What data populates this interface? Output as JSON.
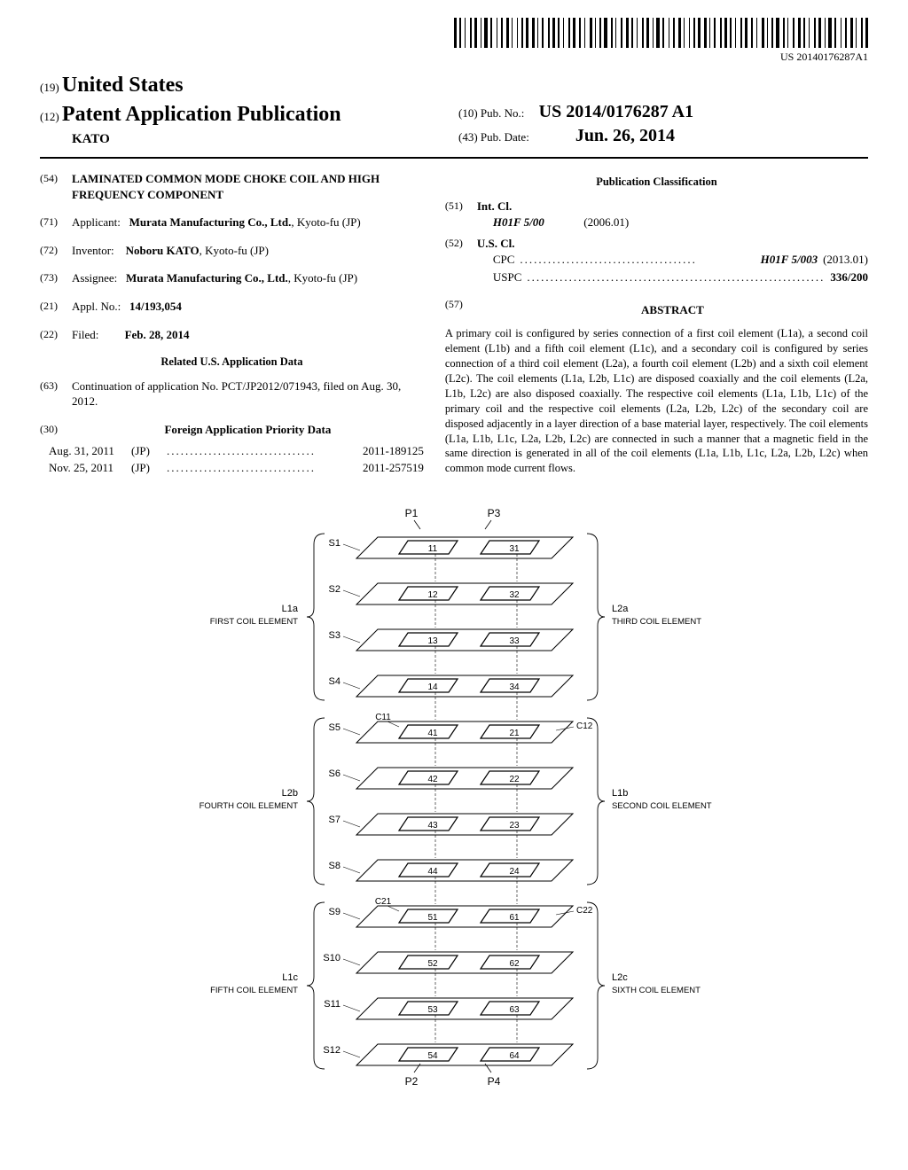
{
  "barcode_text": "US 20140176287A1",
  "country_prefix": "(19)",
  "country_name": "United States",
  "pub_prefix": "(12)",
  "pub_title": "Patent Application Publication",
  "author_line": "KATO",
  "pub_no_prefix": "(10)",
  "pub_no_label": "Pub. No.:",
  "pub_no": "US 2014/0176287 A1",
  "pub_date_prefix": "(43)",
  "pub_date_label": "Pub. Date:",
  "pub_date": "Jun. 26, 2014",
  "title_prefix": "(54)",
  "title": "LAMINATED COMMON MODE CHOKE COIL AND HIGH FREQUENCY COMPONENT",
  "applicant_prefix": "(71)",
  "applicant_label": "Applicant:",
  "applicant_name": "Murata Manufacturing Co., Ltd.",
  "applicant_loc": "Kyoto-fu (JP)",
  "inventor_prefix": "(72)",
  "inventor_label": "Inventor:",
  "inventor_name": "Noboru KATO",
  "inventor_loc": ", Kyoto-fu (JP)",
  "assignee_prefix": "(73)",
  "assignee_label": "Assignee:",
  "assignee_name": "Murata Manufacturing Co., Ltd.",
  "assignee_loc": "Kyoto-fu (JP)",
  "appl_no_prefix": "(21)",
  "appl_no_label": "Appl. No.:",
  "appl_no": "14/193,054",
  "filed_prefix": "(22)",
  "filed_label": "Filed:",
  "filed_date": "Feb. 28, 2014",
  "related_title": "Related U.S. Application Data",
  "continuation_prefix": "(63)",
  "continuation_text": "Continuation of application No. PCT/JP2012/071943, filed on Aug. 30, 2012.",
  "foreign_prefix": "(30)",
  "foreign_title": "Foreign Application Priority Data",
  "foreign_rows": [
    {
      "date": "Aug. 31, 2011",
      "country": "(JP)",
      "num": "2011-189125"
    },
    {
      "date": "Nov. 25, 2011",
      "country": "(JP)",
      "num": "2011-257519"
    }
  ],
  "pub_class_title": "Publication Classification",
  "int_cl_prefix": "(51)",
  "int_cl_label": "Int. Cl.",
  "int_cl_code": "H01F 5/00",
  "int_cl_year": "(2006.01)",
  "us_cl_prefix": "(52)",
  "us_cl_label": "U.S. Cl.",
  "cpc_label": "CPC",
  "cpc_val": "H01F 5/003",
  "cpc_year": "(2013.01)",
  "uspc_label": "USPC",
  "uspc_val": "336/200",
  "abstract_prefix": "(57)",
  "abstract_label": "ABSTRACT",
  "abstract_text": "A primary coil is configured by series connection of a first coil element (L1a), a second coil element (L1b) and a fifth coil element (L1c), and a secondary coil is configured by series connection of a third coil element (L2a), a fourth coil element (L2b) and a sixth coil element (L2c). The coil elements (L1a, L2b, L1c) are disposed coaxially and the coil elements (L2a, L1b, L2c) are also disposed coaxially. The respective coil elements (L1a, L1b, L1c) of the primary coil and the respective coil elements (L2a, L2b, L2c) of the secondary coil are disposed adjacently in a layer direction of a base material layer, respectively. The coil elements (L1a, L1b, L1c, L2a, L2b, L2c) are connected in such a manner that a magnetic field in the same direction is generated in all of the coil elements (L1a, L1b, L1c, L2a, L2b, L2c) when common mode current flows.",
  "figure": {
    "sheets": [
      "S1",
      "S2",
      "S3",
      "S4",
      "S5",
      "S6",
      "S7",
      "S8",
      "S9",
      "S10",
      "S11",
      "S12"
    ],
    "left_nums": [
      "11",
      "12",
      "13",
      "14",
      "41",
      "42",
      "43",
      "44",
      "51",
      "52",
      "53",
      "54"
    ],
    "right_nums": [
      "31",
      "32",
      "33",
      "34",
      "21",
      "22",
      "23",
      "24",
      "61",
      "62",
      "63",
      "64"
    ],
    "top_labels": {
      "P1": "P1",
      "P3": "P3"
    },
    "bottom_labels": {
      "P2": "P2",
      "P4": "P4"
    },
    "mid_labels": {
      "C11": "C11",
      "C12": "C12",
      "C21": "C21",
      "C22": "C22"
    },
    "left_groups": [
      {
        "id": "L1a",
        "name": "FIRST COIL ELEMENT"
      },
      {
        "id": "L2b",
        "name": "FOURTH COIL ELEMENT"
      },
      {
        "id": "L1c",
        "name": "FIFTH COIL ELEMENT"
      }
    ],
    "right_groups": [
      {
        "id": "L2a",
        "name": "THIRD COIL ELEMENT"
      },
      {
        "id": "L1b",
        "name": "SECOND COIL ELEMENT"
      },
      {
        "id": "L2c",
        "name": "SIXTH COIL ELEMENT"
      }
    ]
  }
}
